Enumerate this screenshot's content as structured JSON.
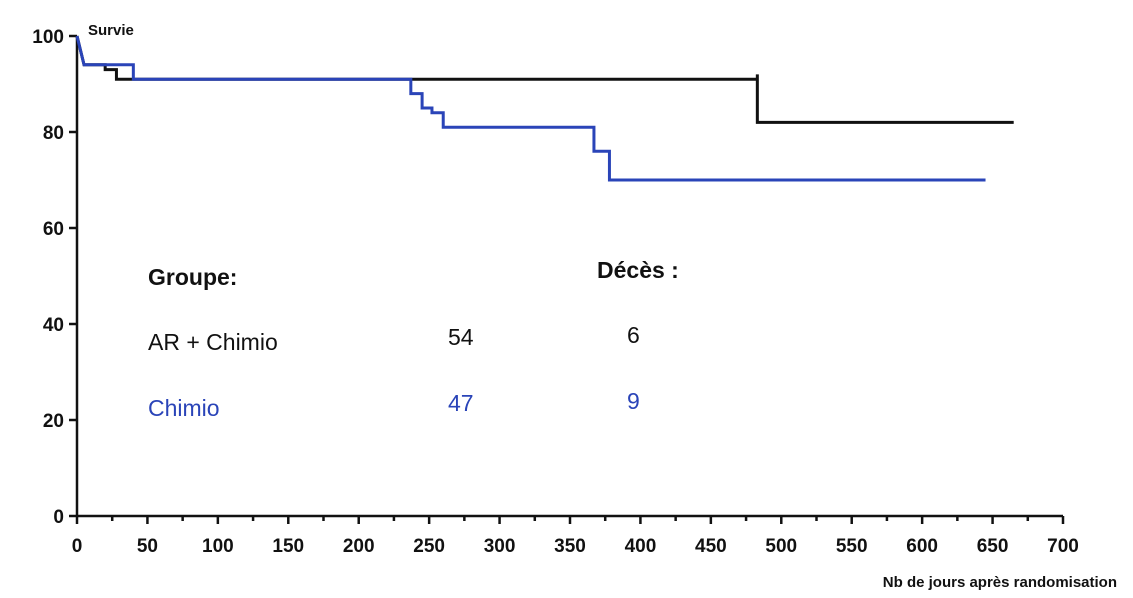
{
  "chart_data": {
    "type": "line",
    "ylabel": "Survie",
    "xlabel": "Nb de jours après randomisation",
    "xlim": [
      0,
      700
    ],
    "ylim": [
      0,
      100
    ],
    "x_ticks": [
      0,
      50,
      100,
      150,
      200,
      250,
      300,
      350,
      400,
      450,
      500,
      550,
      600,
      650,
      700
    ],
    "y_ticks": [
      0,
      20,
      40,
      60,
      80,
      100
    ],
    "grid": false,
    "series": [
      {
        "name": "AR + Chimio",
        "color": "#111111",
        "x": [
          0,
          5,
          15,
          20,
          28,
          483,
          483,
          665
        ],
        "y": [
          100,
          94,
          94,
          93,
          91,
          92,
          82,
          82
        ]
      },
      {
        "name": "Chimio",
        "color": "#2a44b8",
        "x": [
          0,
          5,
          40,
          40,
          237,
          237,
          245,
          245,
          252,
          252,
          260,
          260,
          367,
          367,
          378,
          378,
          645
        ],
        "y": [
          100,
          94,
          94,
          91,
          91,
          88,
          88,
          85,
          85,
          84,
          84,
          81,
          81,
          76,
          76,
          70,
          70
        ]
      }
    ],
    "legend": {
      "header_group": "Groupe:",
      "header_deaths": "Décès :",
      "rows": [
        {
          "group": "AR + Chimio",
          "n": "54",
          "deaths": "6",
          "color": "#111111"
        },
        {
          "group": "Chimio",
          "n": "47",
          "deaths": "9",
          "color": "#2a44b8"
        }
      ]
    }
  }
}
